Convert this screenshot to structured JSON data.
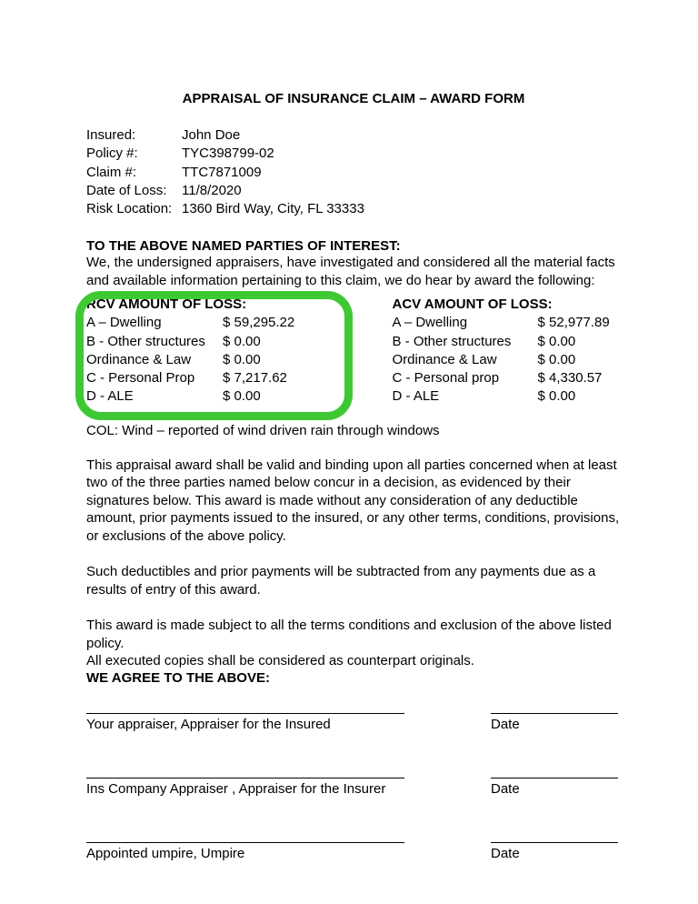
{
  "title": "APPRAISAL OF INSURANCE CLAIM – AWARD FORM",
  "header": {
    "insured_label": "Insured:",
    "insured_value": "John Doe",
    "policy_label": "Policy #:",
    "policy_value": "TYC398799-02",
    "claim_label": "Claim #:",
    "claim_value": "TTC7871009",
    "date_loss_label": "Date of Loss:",
    "date_loss_value": "11/8/2020",
    "risk_loc_label": "Risk Location:",
    "risk_loc_value": "1360 Bird Way, City, FL  33333"
  },
  "parties_heading": "TO THE ABOVE NAMED PARTIES OF INTEREST:",
  "intro_text": "We, the undersigned appraisers, have investigated and considered all the material facts and available information pertaining to this claim, we do hear by award the following:",
  "rcv": {
    "heading": "RCV AMOUNT OF LOSS:",
    "rows": [
      {
        "label": "A – Dwelling",
        "value": "$ 59,295.22"
      },
      {
        "label": "B - Other structures",
        "value": "$ 0.00"
      },
      {
        "label": "Ordinance & Law",
        "value": "$ 0.00"
      },
      {
        "label": "C - Personal Prop",
        "value": "$ 7,217.62"
      },
      {
        "label": "D - ALE",
        "value": "$ 0.00"
      }
    ]
  },
  "acv": {
    "heading": "ACV AMOUNT OF LOSS:",
    "rows": [
      {
        "label": "A – Dwelling",
        "value": "$ 52,977.89"
      },
      {
        "label": "B - Other structures",
        "value": "$ 0.00"
      },
      {
        "label": "Ordinance & Law",
        "value": "$ 0.00"
      },
      {
        "label": "C - Personal prop",
        "value": "$ 4,330.57"
      },
      {
        "label": "D - ALE",
        "value": "$ 0.00"
      }
    ]
  },
  "col_text": "COL: Wind – reported of wind driven rain through windows",
  "para1": "This appraisal award shall be valid and binding upon all parties concerned when at least two of the three parties named below concur in a decision, as evidenced by their signatures below.  This award is made without any consideration of any deductible amount, prior payments issued to the insured, or any other terms, conditions, provisions, or exclusions of the above policy.",
  "para2": "Such deductibles and prior payments will be subtracted from any payments due as a results of entry of this award.",
  "para3": "This award is made subject to all the terms conditions and exclusion of the above listed policy.",
  "para4": "All executed copies shall be considered as counterpart originals.",
  "agree_heading": "WE AGREE TO THE ABOVE:",
  "signatures": [
    {
      "left": "Your appraiser, Appraiser for the Insured",
      "right": "Date"
    },
    {
      "left": " Ins Company Appraiser , Appraiser for the Insurer",
      "right": "Date"
    },
    {
      "left": "Appointed umpire, Umpire",
      "right": "Date"
    }
  ]
}
